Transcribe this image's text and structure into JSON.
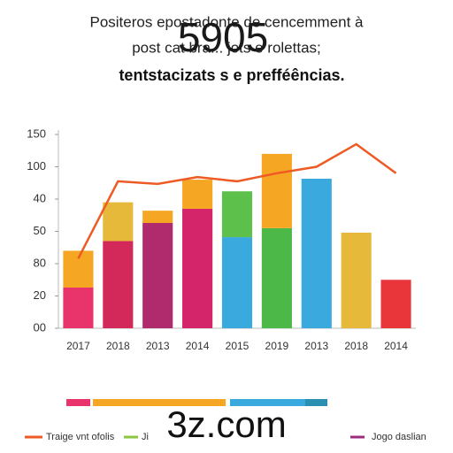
{
  "title_lines": [
    "Positeros epostadonte de cencemment à",
    "post cat bra... jots e rolettas;",
    "tentstacizats s e prefféências."
  ],
  "watermark": "5905",
  "footer_text": "3z.com",
  "chart_data": {
    "type": "bar",
    "categories": [
      "2017",
      "2018",
      "2013",
      "2014",
      "2015",
      "2019",
      "2013",
      "2018",
      "2014"
    ],
    "ylim": [
      0,
      6
    ],
    "yticks": [
      {
        "value": 0,
        "label": "00"
      },
      {
        "value": 1,
        "label": "20"
      },
      {
        "value": 2,
        "label": "80"
      },
      {
        "value": 3,
        "label": "50"
      },
      {
        "value": 4,
        "label": "40"
      },
      {
        "value": 5,
        "label": "100"
      },
      {
        "value": 6,
        "label": "150"
      }
    ],
    "series": [
      {
        "values": [
          1.26,
          2.7,
          3.26,
          3.7,
          2.82,
          3.1,
          4.63,
          2.96,
          1.5
        ],
        "colors": [
          "#e8336b",
          "#d2285a",
          "#b02a6e",
          "#d4246a",
          "#39a9de",
          "#4cb848",
          "#39a9de",
          "#e6b93a",
          "#e8363a"
        ]
      },
      {
        "values": [
          1.14,
          1.2,
          0.38,
          0.9,
          1.42,
          2.3,
          null,
          null,
          null
        ],
        "colors": [
          "#f5a623",
          "#e6b93a",
          "#f5a623",
          "#f5a623",
          "#5cc04a",
          "#f5a623",
          null,
          null,
          null
        ]
      }
    ],
    "line": {
      "name": "Traige vnt ofolis",
      "color": "#ee5a24",
      "values": [
        2.16,
        4.55,
        4.47,
        4.68,
        4.55,
        4.8,
        5.0,
        5.7,
        4.8
      ]
    },
    "legend_extra": [
      {
        "name": "Ji",
        "color": "#8dc63f"
      },
      {
        "name": "Jogo daslian",
        "color": "#9b2d7f"
      }
    ]
  }
}
